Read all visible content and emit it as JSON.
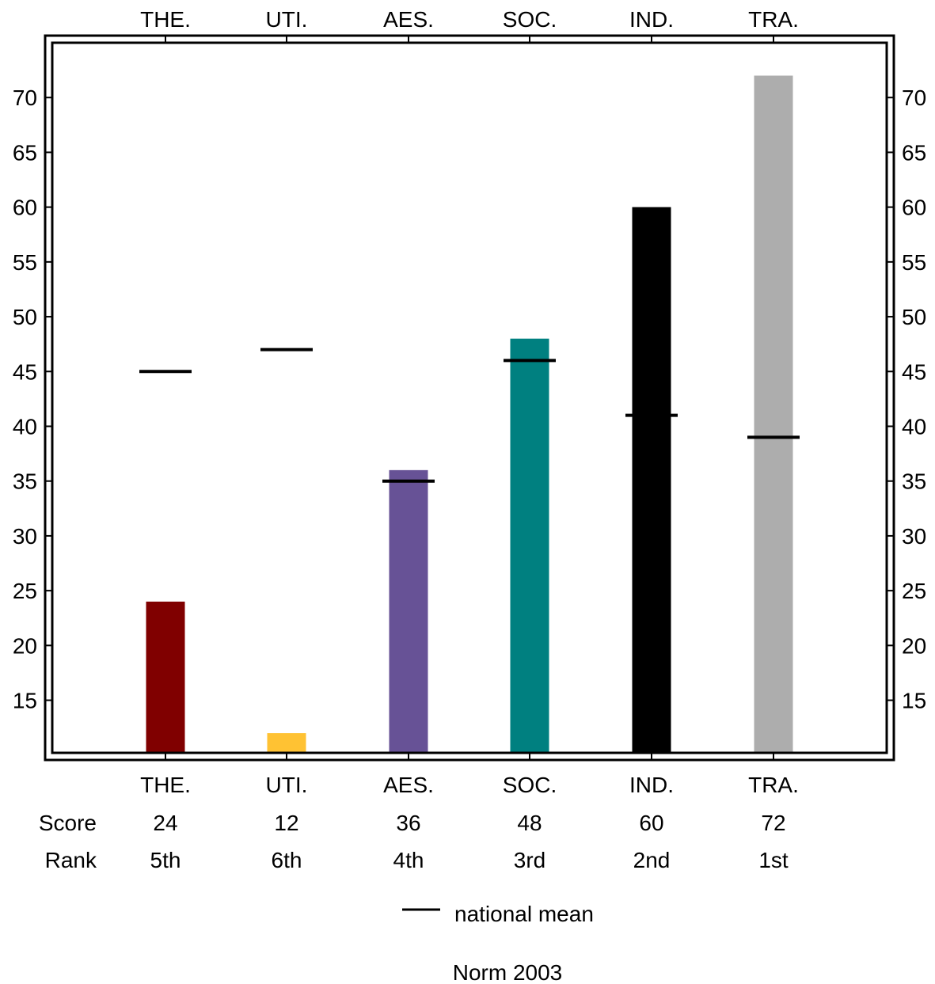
{
  "chart_data": {
    "type": "bar",
    "categories": [
      "THE.",
      "UTI.",
      "AES.",
      "SOC.",
      "IND.",
      "TRA."
    ],
    "values": [
      24,
      12,
      36,
      48,
      60,
      72
    ],
    "bar_colors": [
      "#800000",
      "#FFC233",
      "#675296",
      "#008080",
      "#000000",
      "#ADADAD"
    ],
    "national_mean": [
      45,
      47,
      35,
      46,
      41,
      39
    ],
    "ranks": [
      "5th",
      "6th",
      "4th",
      "3rd",
      "2nd",
      "1st"
    ],
    "ylim": [
      10.2,
      75
    ],
    "yticks": [
      15,
      20,
      25,
      30,
      35,
      40,
      45,
      50,
      55,
      60,
      65,
      70
    ],
    "row_labels": {
      "score": "Score",
      "rank": "Rank"
    },
    "legend": {
      "label": "national mean"
    },
    "footer": "Norm 2003",
    "grid": false
  }
}
